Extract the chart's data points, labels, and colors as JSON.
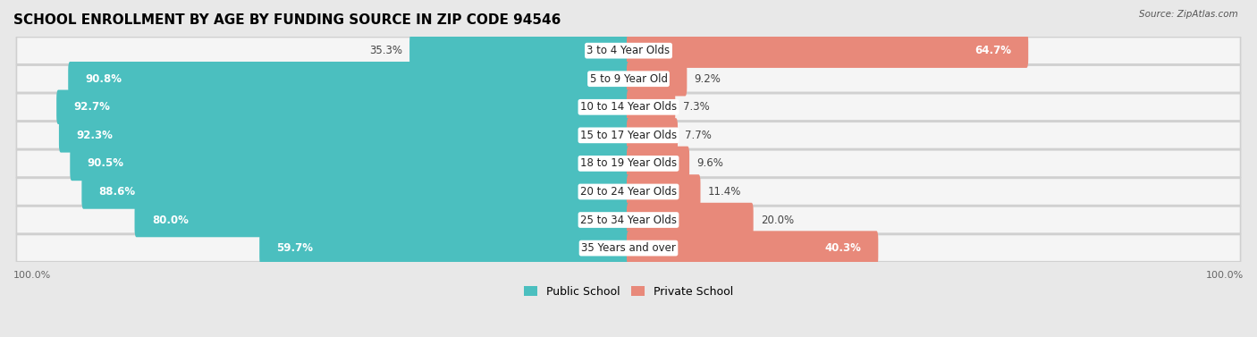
{
  "title": "SCHOOL ENROLLMENT BY AGE BY FUNDING SOURCE IN ZIP CODE 94546",
  "source": "Source: ZipAtlas.com",
  "categories": [
    "3 to 4 Year Olds",
    "5 to 9 Year Old",
    "10 to 14 Year Olds",
    "15 to 17 Year Olds",
    "18 to 19 Year Olds",
    "20 to 24 Year Olds",
    "25 to 34 Year Olds",
    "35 Years and over"
  ],
  "public_pct": [
    35.3,
    90.8,
    92.7,
    92.3,
    90.5,
    88.6,
    80.0,
    59.7
  ],
  "private_pct": [
    64.7,
    9.2,
    7.3,
    7.7,
    9.6,
    11.4,
    20.0,
    40.3
  ],
  "public_color": "#4bbfbf",
  "private_color": "#e8897a",
  "background_color": "#e8e8e8",
  "row_background": "#f5f5f5",
  "row_border": "#d0d0d0",
  "legend_public": "Public School",
  "legend_private": "Private School",
  "axis_label_left": "100.0%",
  "axis_label_right": "100.0%",
  "bar_height": 0.62,
  "title_fontsize": 11,
  "label_fontsize": 8.5,
  "category_fontsize": 8.5,
  "xlim": 100
}
